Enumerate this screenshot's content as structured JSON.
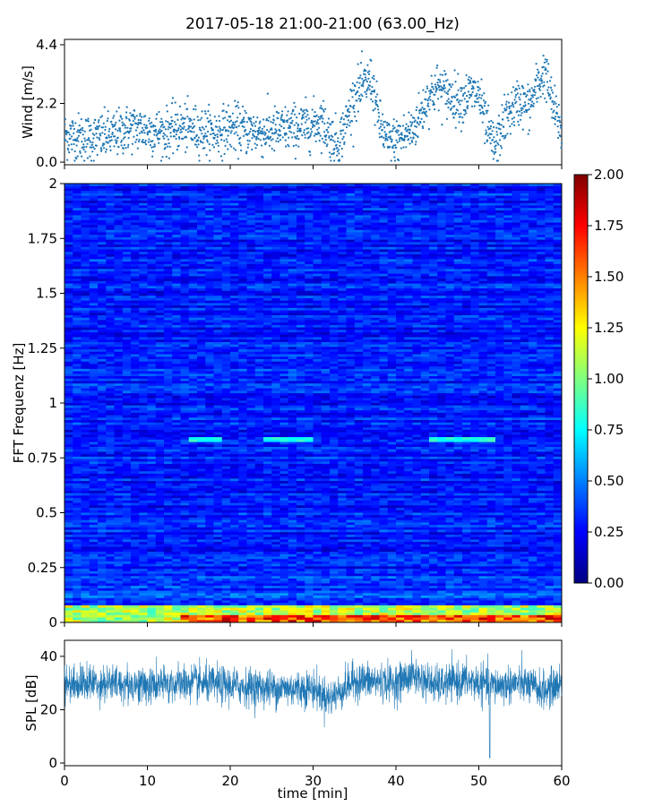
{
  "figure": {
    "title": "2017-05-18 21:00-21:00 (63.00_Hz)"
  },
  "colors": {
    "scatter": "#1f77b4",
    "spl": "#1f77b4",
    "colormap": "jet"
  },
  "chart_data": [
    {
      "id": "wind",
      "type": "scatter",
      "ylabel": "Wind [m/s]",
      "xlim": [
        0,
        60
      ],
      "ylim": [
        -0.1,
        4.6
      ],
      "yticks": [
        0.0,
        2.2,
        4.4
      ],
      "ytick_labels": [
        "0.0",
        "2.2",
        "4.4"
      ],
      "xticks": [
        0,
        10,
        20,
        30,
        40,
        50,
        60
      ],
      "trend": {
        "x": [
          0,
          3,
          6,
          8,
          10,
          12,
          14,
          16,
          18,
          20,
          22,
          24,
          26,
          28,
          30,
          31,
          32,
          33,
          34,
          35,
          36,
          37,
          38,
          39,
          40,
          41,
          42,
          43,
          44,
          45,
          46,
          47,
          48,
          49,
          50,
          51,
          52,
          53,
          54,
          55,
          56,
          57,
          58,
          59,
          60
        ],
        "y": [
          1.0,
          0.9,
          1.0,
          1.3,
          1.2,
          1.1,
          1.3,
          1.2,
          1.1,
          1.3,
          1.2,
          1.1,
          1.2,
          1.3,
          1.4,
          1.6,
          1.0,
          0.7,
          1.5,
          2.5,
          2.8,
          3.1,
          1.5,
          0.7,
          0.8,
          1.0,
          1.2,
          1.8,
          2.5,
          2.8,
          2.6,
          2.4,
          2.3,
          2.6,
          2.5,
          1.2,
          0.5,
          1.5,
          2.0,
          2.3,
          2.0,
          2.8,
          3.4,
          2.0,
          1.2
        ],
        "spread": 0.8,
        "n_points": 1800
      }
    },
    {
      "id": "spectrogram",
      "type": "heatmap",
      "ylabel": "FFT Frequenz [Hz]",
      "xlim": [
        0,
        60
      ],
      "ylim": [
        0,
        2
      ],
      "yticks": [
        0,
        0.25,
        0.5,
        0.75,
        1,
        1.25,
        1.5,
        1.75,
        2
      ],
      "ytick_labels": [
        "0",
        "0.25",
        "0.5",
        "0.75",
        "1",
        "1.25",
        "1.5",
        "1.75",
        "2"
      ],
      "xticks": [
        0,
        10,
        20,
        30,
        40,
        50,
        60
      ],
      "base_level": 0.3,
      "low_freq_band": {
        "max_hz": 0.08,
        "level": 1.1,
        "strong_from_min": 14,
        "strong_level": 1.6
      },
      "line_feature": {
        "freq_hz": 0.83,
        "level": 0.8,
        "segments": [
          [
            15,
            19
          ],
          [
            24,
            30
          ],
          [
            44,
            52
          ]
        ]
      },
      "colorbar": {
        "min": 0.0,
        "max": 2.0,
        "ticks": [
          0.0,
          0.25,
          0.5,
          0.75,
          1.0,
          1.25,
          1.5,
          1.75,
          2.0
        ],
        "tick_labels": [
          "0.00",
          "0.25",
          "0.50",
          "0.75",
          "1.00",
          "1.25",
          "1.50",
          "1.75",
          "2.00"
        ]
      }
    },
    {
      "id": "spl",
      "type": "line",
      "ylabel": "SPL [dB]",
      "xlabel": "time [min]",
      "xlim": [
        0,
        60
      ],
      "ylim": [
        -1,
        46
      ],
      "yticks": [
        0,
        20,
        40
      ],
      "ytick_labels": [
        "0",
        "20",
        "40"
      ],
      "xticks": [
        0,
        10,
        20,
        30,
        40,
        50,
        60
      ],
      "xtick_labels": [
        "0",
        "10",
        "20",
        "30",
        "40",
        "50",
        "60"
      ],
      "trend": {
        "x": [
          0,
          5,
          10,
          15,
          20,
          25,
          30,
          32,
          35,
          40,
          42,
          45,
          48,
          50,
          52,
          55,
          58,
          60
        ],
        "y": [
          30,
          30,
          29,
          30,
          29,
          28,
          28,
          24,
          31,
          30,
          33,
          29,
          31,
          30,
          29,
          30,
          27,
          30
        ],
        "spread": 5,
        "n_points": 2400
      }
    }
  ]
}
